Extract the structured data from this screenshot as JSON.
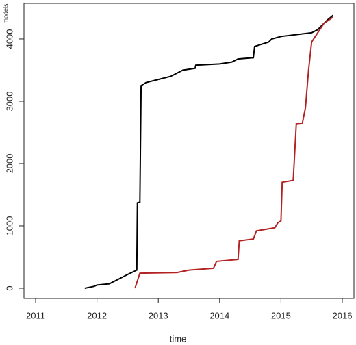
{
  "chart_data": {
    "type": "line",
    "xlabel": "time",
    "ylabel": "models",
    "series": [
      {
        "color": "#000000",
        "x": [
          2011.8,
          2011.95,
          2012.0,
          2012.2,
          2012.3,
          2012.5,
          2012.65,
          2012.66,
          2012.7,
          2012.72,
          2012.8,
          2013.0,
          2013.2,
          2013.3,
          2013.4,
          2013.6,
          2013.61,
          2014.0,
          2014.2,
          2014.3,
          2014.55,
          2014.57,
          2014.8,
          2014.85,
          2015.0,
          2015.5,
          2015.6,
          2015.75,
          2015.85
        ],
        "values": [
          0,
          30,
          50,
          70,
          120,
          220,
          290,
          1370,
          1380,
          3250,
          3300,
          3350,
          3400,
          3450,
          3500,
          3530,
          3580,
          3600,
          3630,
          3680,
          3700,
          3880,
          3950,
          4000,
          4040,
          4100,
          4150,
          4300,
          4380
        ]
      },
      {
        "color": "#b22222",
        "x": [
          2012.62,
          2012.7,
          2013.3,
          2013.5,
          2013.9,
          2013.95,
          2014.3,
          2014.32,
          2014.55,
          2014.6,
          2014.9,
          2014.95,
          2015.0,
          2015.02,
          2015.2,
          2015.25,
          2015.35,
          2015.4,
          2015.45,
          2015.5,
          2015.6,
          2015.7,
          2015.85
        ],
        "values": [
          0,
          240,
          250,
          290,
          320,
          430,
          460,
          760,
          790,
          920,
          970,
          1050,
          1080,
          1700,
          1730,
          2640,
          2650,
          2900,
          3500,
          3950,
          4100,
          4250,
          4350
        ]
      }
    ],
    "xlim": [
      2010.81,
      2016.19
    ],
    "xticks": [
      2011,
      2012,
      2013,
      2014,
      2015,
      2016
    ],
    "ylim": [
      -165,
      4571
    ],
    "yticks": [
      0,
      1000,
      2000,
      3000,
      4000
    ],
    "grid": false
  }
}
